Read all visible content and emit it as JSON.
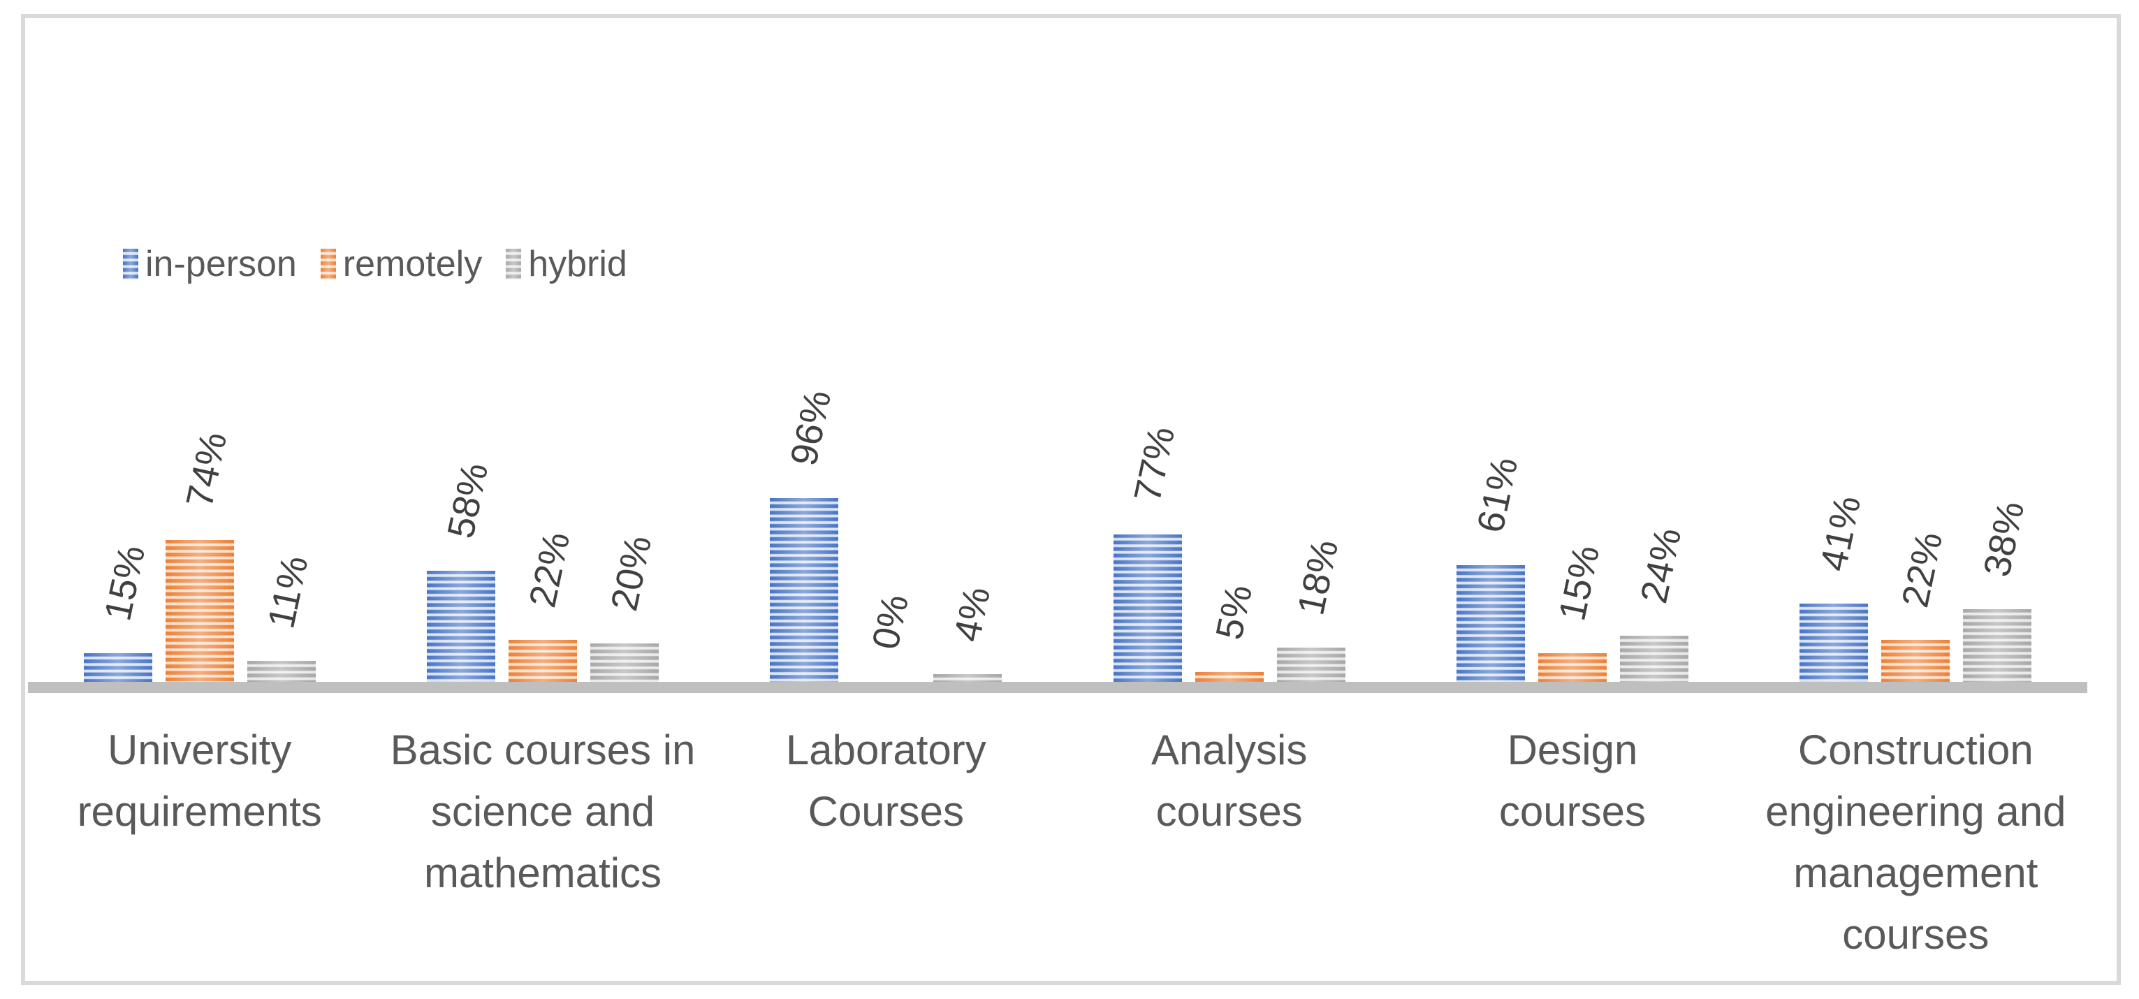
{
  "chart_data": {
    "type": "bar",
    "title": "",
    "categories": [
      {
        "name": "University requirements",
        "lines": [
          "University",
          "requirements"
        ]
      },
      {
        "name": "Basic courses in science and mathematics",
        "lines": [
          "Basic courses in",
          "science and",
          "mathematics"
        ]
      },
      {
        "name": "Laboratory Courses",
        "lines": [
          "Laboratory",
          "Courses"
        ]
      },
      {
        "name": "Analysis courses",
        "lines": [
          "Analysis",
          "courses"
        ]
      },
      {
        "name": "Design courses",
        "lines": [
          "Design",
          "courses"
        ]
      },
      {
        "name": "Construction engineering and management courses",
        "lines": [
          "Construction",
          "engineering and",
          "management",
          "courses"
        ]
      }
    ],
    "series": [
      {
        "name": "in-person",
        "values": [
          15,
          58,
          96,
          77,
          61,
          41
        ],
        "color_dark": "#4472C4",
        "color_light": "#D9E2F3"
      },
      {
        "name": "remotely",
        "values": [
          74,
          22,
          0,
          5,
          15,
          22
        ],
        "color_dark": "#ED7D31",
        "color_light": "#FBDFCB"
      },
      {
        "name": "hybrid",
        "values": [
          11,
          20,
          4,
          18,
          24,
          38
        ],
        "color_dark": "#A6A6A6",
        "color_light": "#E9E9E9"
      }
    ],
    "value_suffix": "%",
    "data_labels": [
      [
        "15%",
        "74%",
        "11%"
      ],
      [
        "58%",
        "22%",
        "20%"
      ],
      [
        "96%",
        "0%",
        "4%"
      ],
      [
        "77%",
        "5%",
        "18%"
      ],
      [
        "61%",
        "15%",
        "24%"
      ],
      [
        "41%",
        "22%",
        "38%"
      ]
    ],
    "ylim": [
      0,
      100
    ],
    "gridlines": false,
    "legend_position": "top-left",
    "bar_pattern": "horizontal-stripes",
    "data_label_rotation_deg": -78
  },
  "colors": {
    "background": "#FFFFFF",
    "border": "#D9D9D9",
    "axis_line": "#BFBFBF",
    "data_label": "#404040",
    "category_label": "#595959",
    "legend_label": "#595959"
  }
}
